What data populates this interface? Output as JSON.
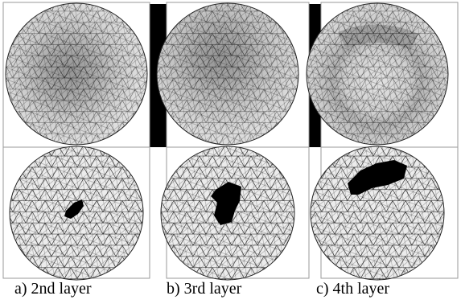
{
  "captions": {
    "a": "a) 2nd layer",
    "b": "b) 3rd layer",
    "c": "c) 4th layer"
  },
  "colors": {
    "background": "#ffffff",
    "frame": "#9a9a9a",
    "mesh_line": "#111111",
    "mesh_fill": "#e6e6e6",
    "inclusion": "#000000",
    "separator_bar": "#000000",
    "shade_dark": "#2e2e2e",
    "shade_mid": "#6e6e6e",
    "shade_light": "#a8a8a8"
  },
  "panels": [
    {
      "id": "a-top",
      "kind": "reconstruction",
      "layer": "2nd"
    },
    {
      "id": "b-top",
      "kind": "reconstruction",
      "layer": "3rd"
    },
    {
      "id": "c-top",
      "kind": "reconstruction",
      "layer": "4th"
    },
    {
      "id": "a-bottom",
      "kind": "true-inclusion",
      "layer": "2nd"
    },
    {
      "id": "b-bottom",
      "kind": "true-inclusion",
      "layer": "3rd"
    },
    {
      "id": "c-bottom",
      "kind": "true-inclusion",
      "layer": "4th"
    }
  ]
}
